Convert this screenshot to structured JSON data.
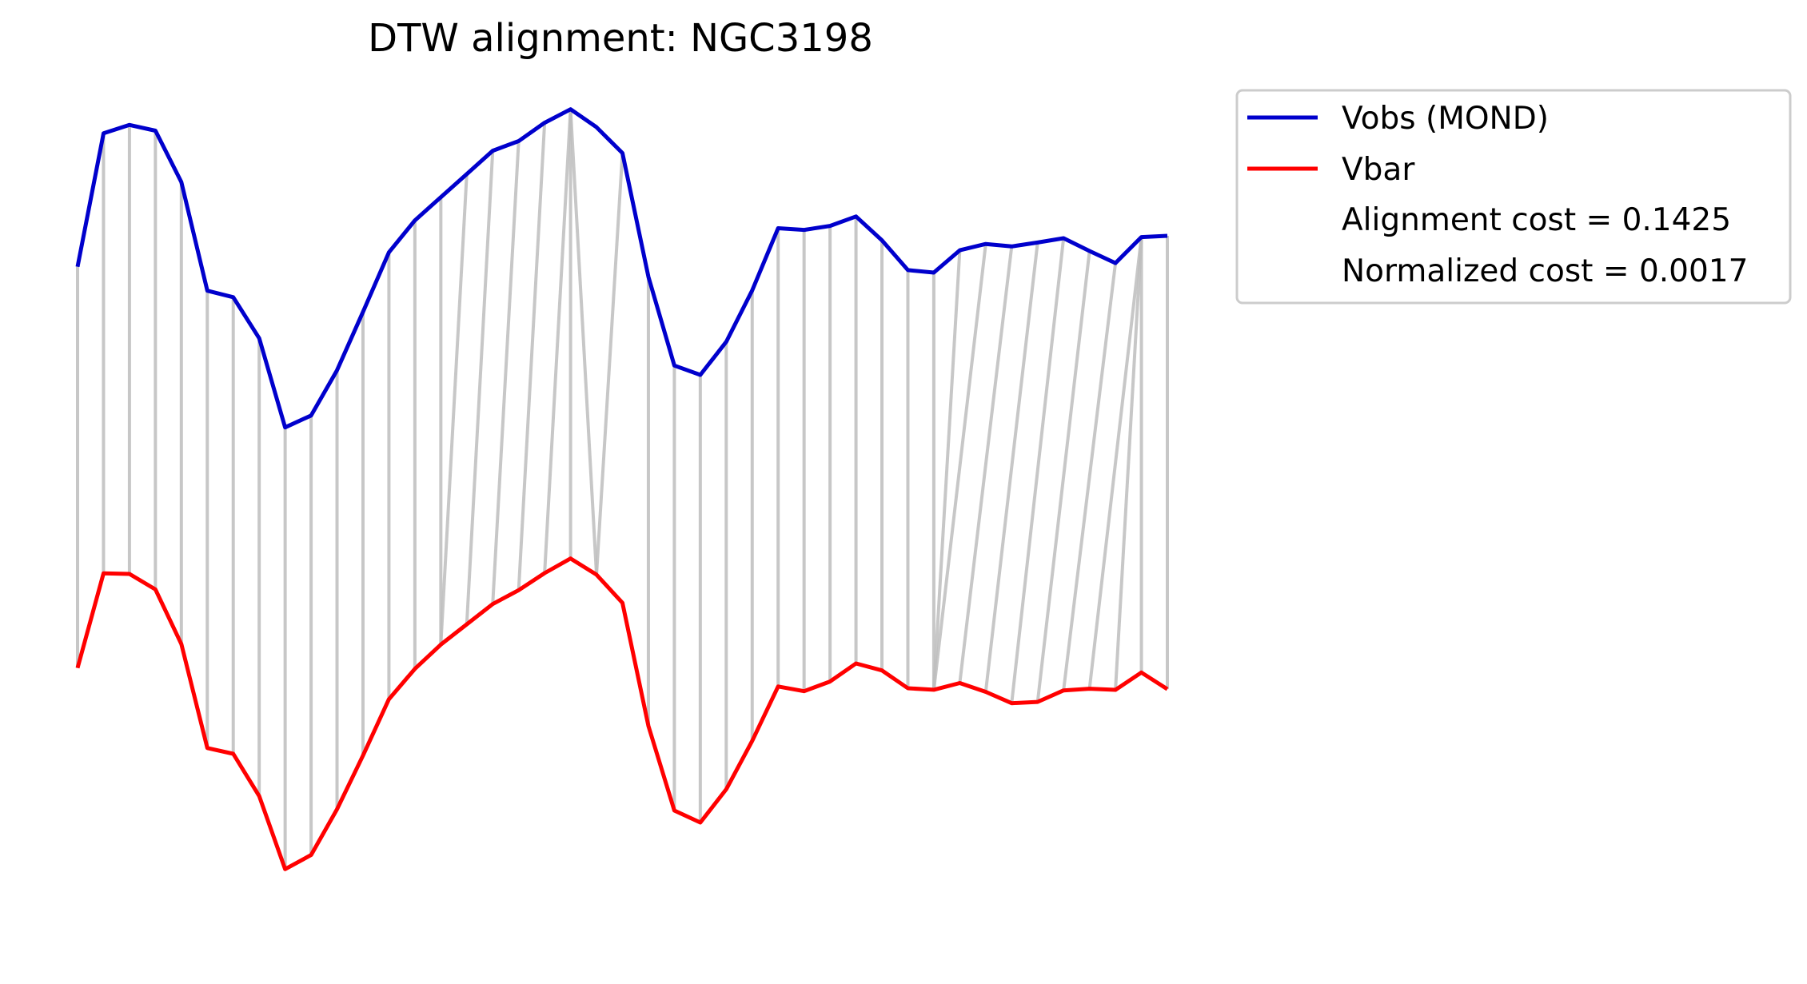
{
  "chart_data": {
    "type": "line",
    "title": "DTW alignment: NGC3198",
    "xlabel": "",
    "ylabel": "",
    "axes_visible": false,
    "grid": false,
    "legend_position": "outside-top-right",
    "series": [
      {
        "name": "Vobs (MOND)",
        "color": "#0000cc",
        "values": [
          0.7895,
          0.9398,
          0.9493,
          0.9428,
          0.8849,
          0.7624,
          0.7551,
          0.7088,
          0.6084,
          0.6218,
          0.6728,
          0.7386,
          0.8057,
          0.8417,
          0.8678,
          0.8939,
          0.9202,
          0.9311,
          0.9517,
          0.9669,
          0.9468,
          0.9176,
          0.778,
          0.6781,
          0.6676,
          0.7049,
          0.7629,
          0.8329,
          0.831,
          0.8355,
          0.8461,
          0.8193,
          0.7857,
          0.7829,
          0.808,
          0.8151,
          0.8123,
          0.8168,
          0.8216,
          0.8072,
          0.7936,
          0.8229,
          0.8243
        ]
      },
      {
        "name": "Vbar",
        "color": "#ff0000",
        "values": [
          0.3373,
          0.444,
          0.4432,
          0.4258,
          0.3642,
          0.247,
          0.2405,
          0.1929,
          0.1105,
          0.1265,
          0.178,
          0.2386,
          0.3021,
          0.3363,
          0.3636,
          0.3865,
          0.4093,
          0.425,
          0.4441,
          0.4606,
          0.4424,
          0.4106,
          0.2718,
          0.1766,
          0.1631,
          0.2005,
          0.2551,
          0.3164,
          0.3111,
          0.322,
          0.3423,
          0.3345,
          0.3144,
          0.3127,
          0.3203,
          0.3104,
          0.2976,
          0.299,
          0.312,
          0.3139,
          0.3126,
          0.3322,
          0.3134
        ]
      }
    ],
    "alignment_pairs": [
      [
        0,
        0
      ],
      [
        1,
        1
      ],
      [
        2,
        2
      ],
      [
        3,
        3
      ],
      [
        4,
        4
      ],
      [
        5,
        5
      ],
      [
        6,
        6
      ],
      [
        7,
        7
      ],
      [
        8,
        8
      ],
      [
        9,
        9
      ],
      [
        10,
        10
      ],
      [
        11,
        11
      ],
      [
        12,
        12
      ],
      [
        13,
        13
      ],
      [
        14,
        14
      ],
      [
        15,
        14
      ],
      [
        16,
        15
      ],
      [
        17,
        16
      ],
      [
        18,
        17
      ],
      [
        19,
        18
      ],
      [
        19,
        19
      ],
      [
        19,
        20
      ],
      [
        21,
        20
      ],
      [
        22,
        22
      ],
      [
        23,
        23
      ],
      [
        24,
        24
      ],
      [
        25,
        25
      ],
      [
        26,
        26
      ],
      [
        27,
        27
      ],
      [
        28,
        28
      ],
      [
        29,
        29
      ],
      [
        30,
        30
      ],
      [
        31,
        31
      ],
      [
        32,
        32
      ],
      [
        33,
        33
      ],
      [
        34,
        33
      ],
      [
        35,
        33
      ],
      [
        36,
        34
      ],
      [
        37,
        35
      ],
      [
        38,
        36
      ],
      [
        39,
        37
      ],
      [
        40,
        38
      ],
      [
        41,
        39
      ],
      [
        41,
        40
      ],
      [
        41,
        41
      ],
      [
        42,
        42
      ]
    ],
    "legend_extra": [
      "Alignment cost = 0.1425",
      "Normalized cost = 0.0017"
    ]
  }
}
